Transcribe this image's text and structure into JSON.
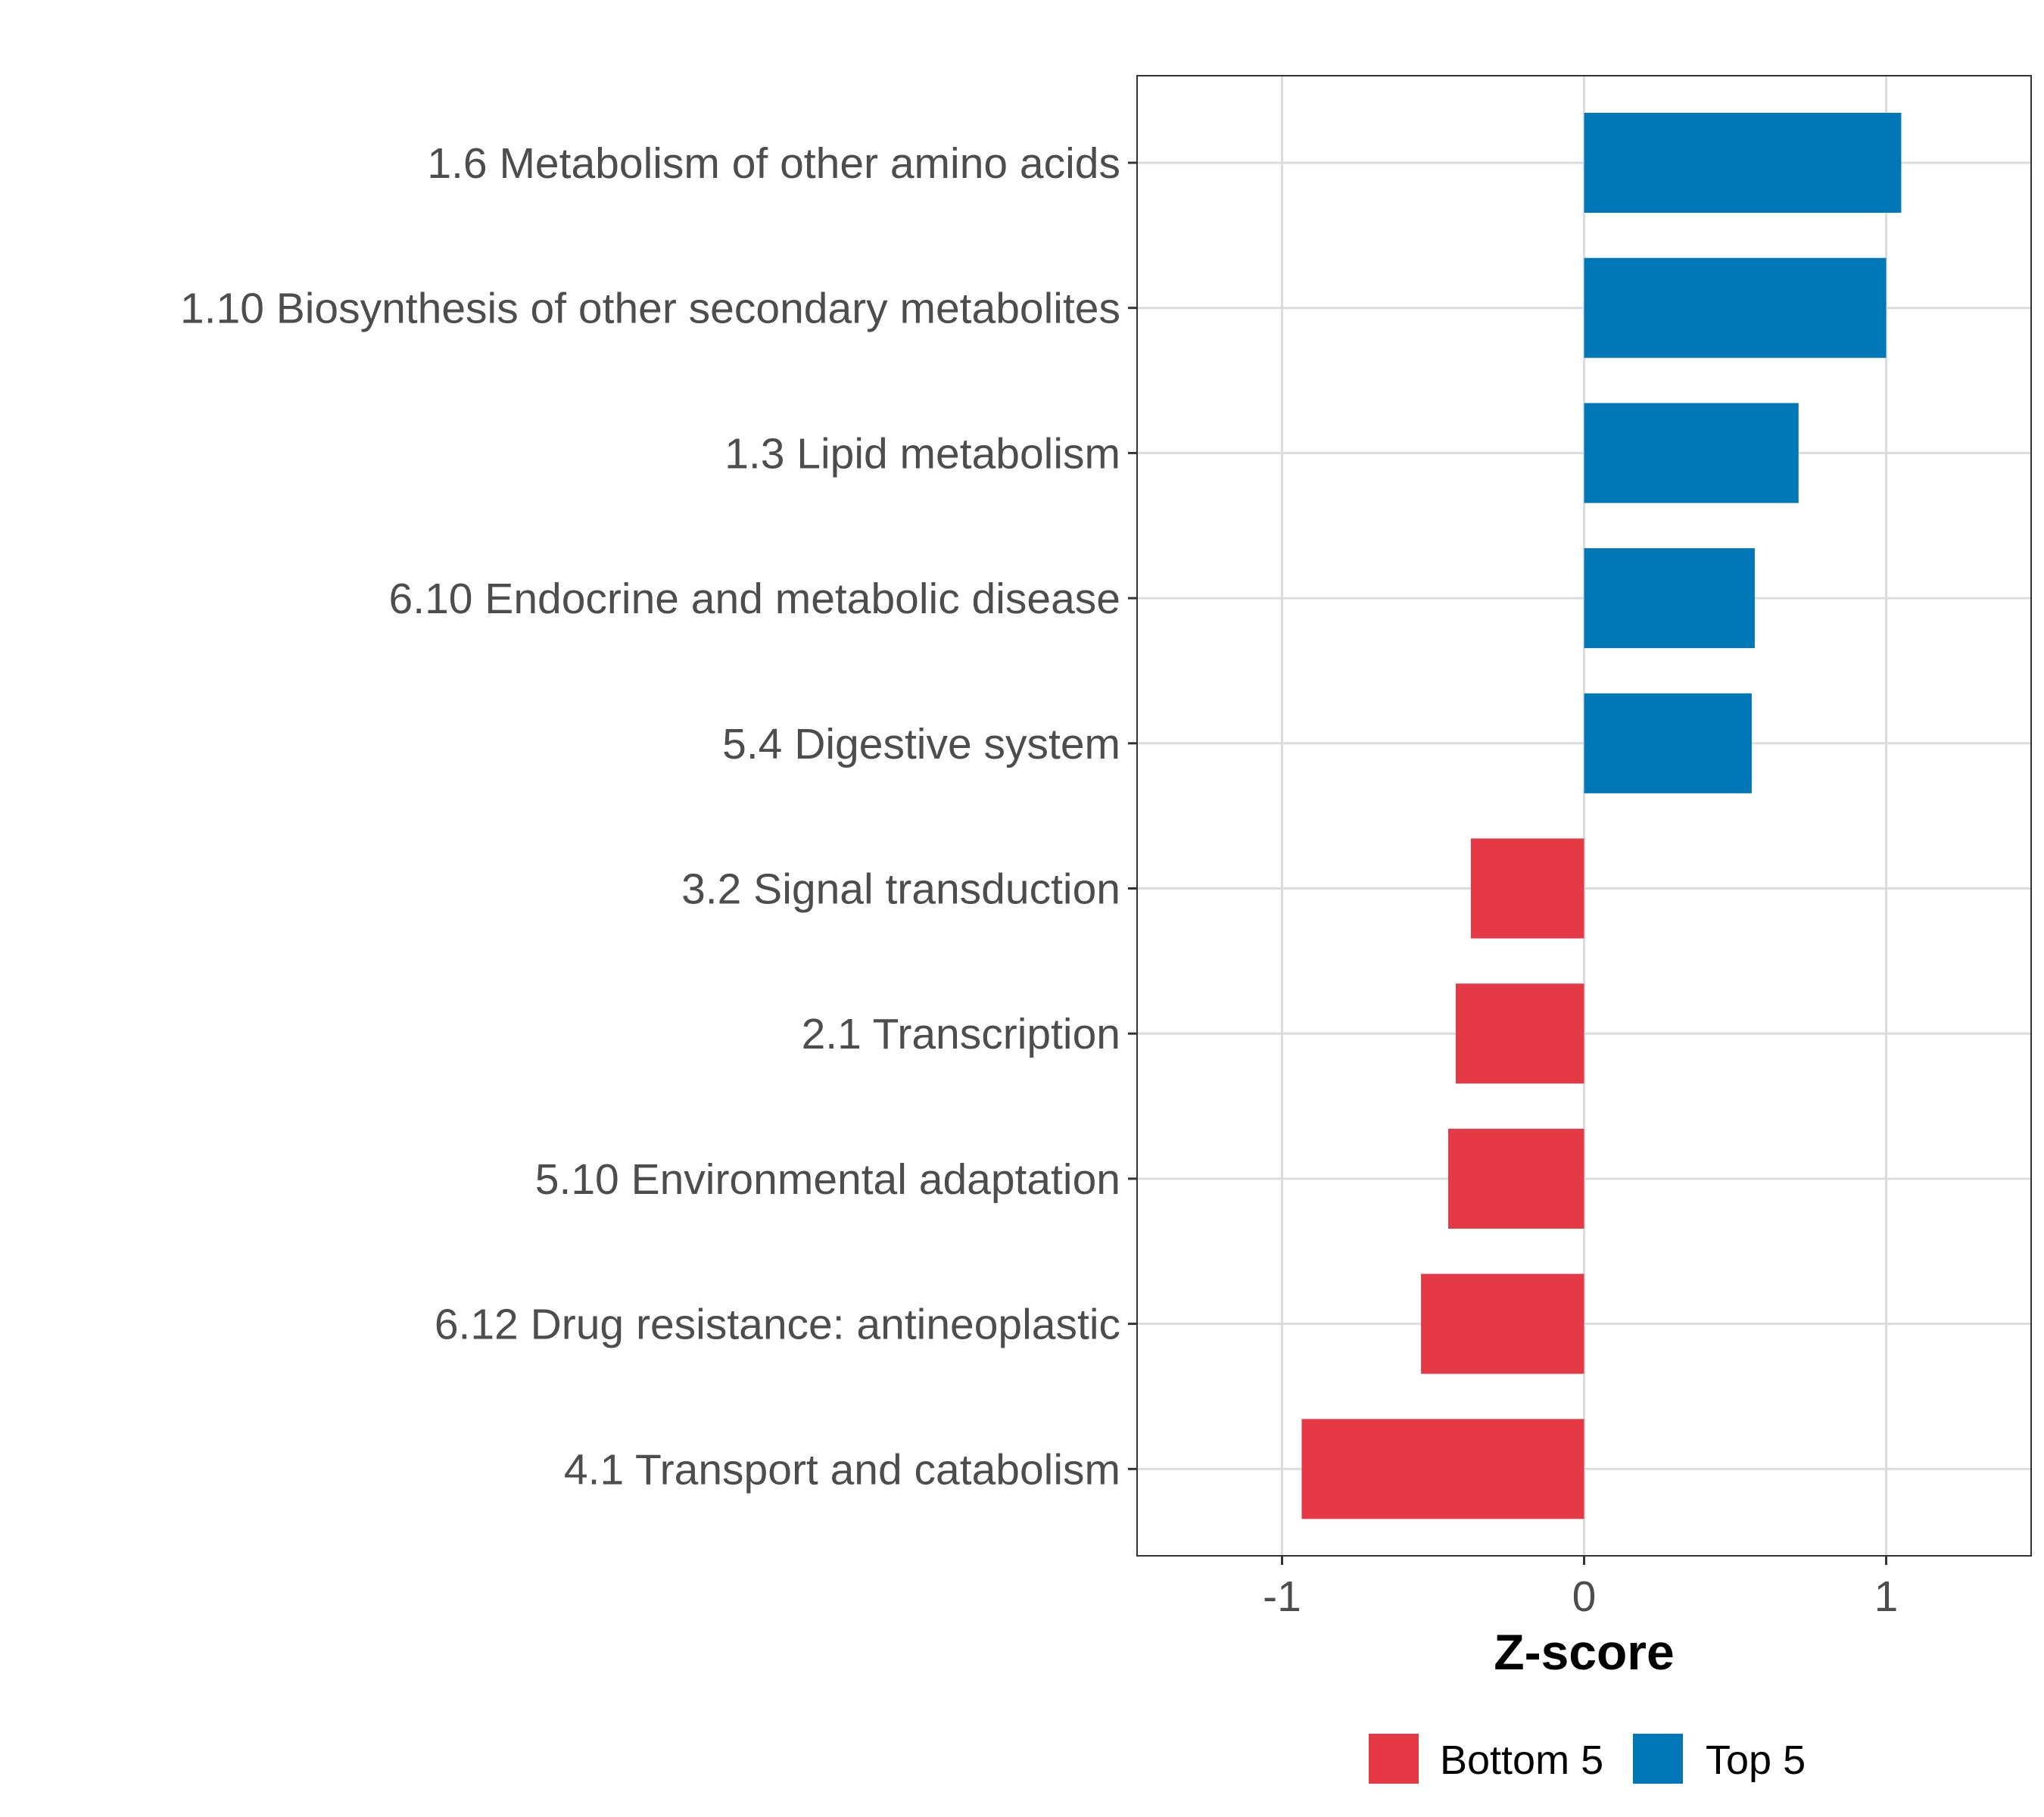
{
  "chart_data": {
    "type": "bar",
    "orientation": "horizontal",
    "categories": [
      "1.6 Metabolism of other amino acids",
      "1.10 Biosynthesis of other secondary metabolites",
      "1.3 Lipid metabolism",
      "6.10 Endocrine and metabolic disease",
      "5.4 Digestive system",
      "3.2 Signal transduction",
      "2.1 Transcription",
      "5.10 Environmental adaptation",
      "6.12 Drug resistance: antineoplastic",
      "4.1 Transport and catabolism"
    ],
    "values": [
      1.05,
      1.0,
      0.71,
      0.565,
      0.555,
      -0.375,
      -0.425,
      -0.45,
      -0.54,
      -0.935
    ],
    "groups": [
      "Top 5",
      "Top 5",
      "Top 5",
      "Top 5",
      "Top 5",
      "Bottom 5",
      "Bottom 5",
      "Bottom 5",
      "Bottom 5",
      "Bottom 5"
    ],
    "xlabel": "Z-score",
    "ylabel": "",
    "xlim": [
      -1.48,
      1.48
    ],
    "xticks": [
      -1,
      0,
      1
    ],
    "xtick_labels": [
      "-1",
      "0",
      "1"
    ],
    "grid": true,
    "legend": {
      "position": "bottom",
      "entries": [
        {
          "label": "Bottom 5",
          "color": "#e63946"
        },
        {
          "label": "Top 5",
          "color": "#0077b6"
        }
      ]
    }
  }
}
